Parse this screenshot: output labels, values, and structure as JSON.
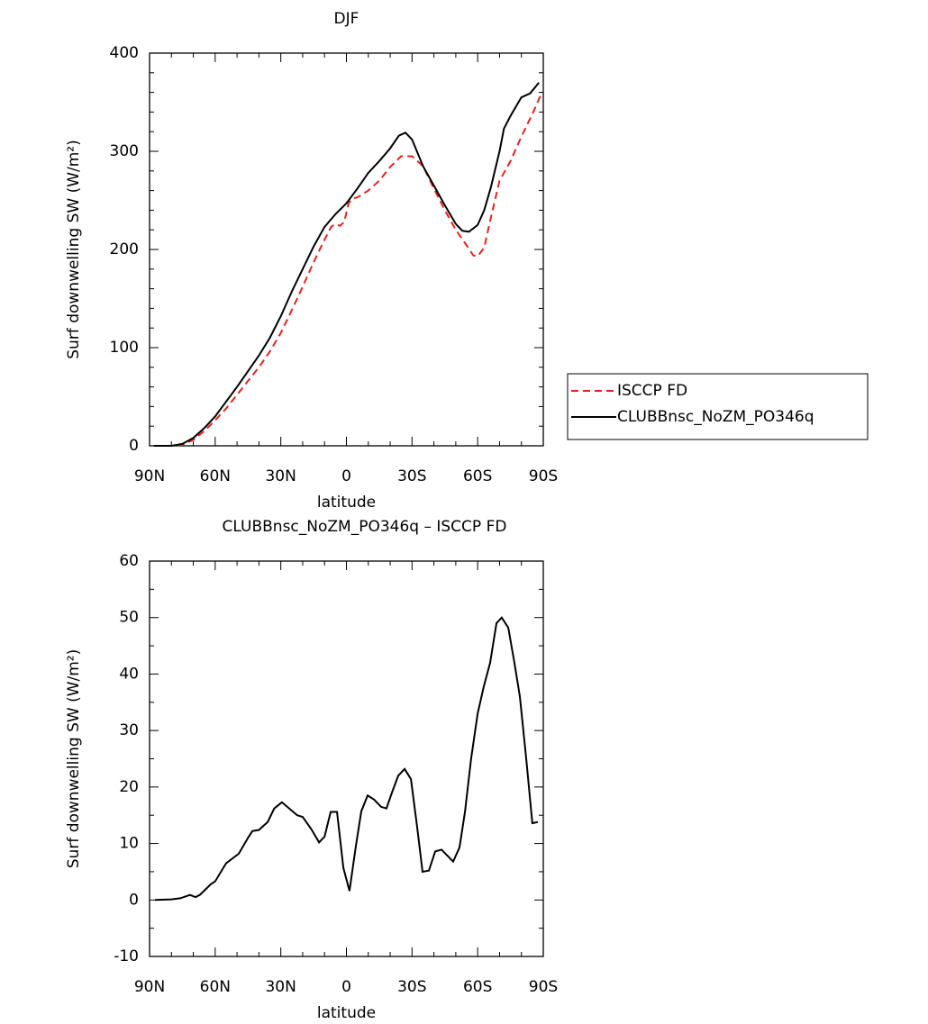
{
  "chart_data": [
    {
      "type": "line",
      "title": "DJF",
      "xlabel": "latitude",
      "ylabel": "Surf downwelling SW (W/m²)",
      "xlim": [
        90,
        -90
      ],
      "xticks": [
        {
          "value": 90,
          "label": "90N"
        },
        {
          "value": 60,
          "label": "60N"
        },
        {
          "value": 30,
          "label": "30N"
        },
        0,
        {
          "value": -30,
          "label": "30S"
        },
        {
          "value": -60,
          "label": "60S"
        },
        {
          "value": -90,
          "label": "90S"
        }
      ],
      "ylim": [
        0,
        400
      ],
      "yticks": [
        0,
        100,
        200,
        300,
        400
      ],
      "legend": "right",
      "series": [
        {
          "name": "ISCCP FD",
          "color": "#e8211d",
          "dash": true,
          "x": [
            88,
            80,
            75,
            70,
            65,
            60,
            55,
            50,
            45,
            40,
            35,
            30,
            25,
            20,
            15,
            10,
            7,
            5,
            3,
            1,
            -1,
            -3,
            -5,
            -10,
            -15,
            -20,
            -25,
            -30,
            -35,
            -40,
            -45,
            -50,
            -55,
            -58,
            -60,
            -63,
            -66,
            -70,
            -75,
            -80,
            -85,
            -89
          ],
          "values": [
            0,
            0,
            1,
            6,
            15,
            26,
            38,
            52,
            66,
            80,
            96,
            115,
            138,
            162,
            187,
            210,
            223,
            226,
            224,
            228,
            247,
            252,
            253,
            260,
            270,
            284,
            295,
            295,
            285,
            262,
            240,
            220,
            204,
            194,
            193,
            202,
            232,
            270,
            290,
            315,
            338,
            358
          ]
        },
        {
          "name": "CLUBBnsc_NoZM_PO346q",
          "color": "#000000",
          "dash": false,
          "x": [
            88,
            80,
            75,
            70,
            65,
            60,
            55,
            50,
            45,
            40,
            35,
            30,
            25,
            20,
            15,
            10,
            5,
            0,
            -5,
            -10,
            -15,
            -20,
            -24,
            -27,
            -30,
            -35,
            -40,
            -45,
            -50,
            -53,
            -56,
            -60,
            -63,
            -66,
            -70,
            -72,
            -75,
            -80,
            -84,
            -88
          ],
          "values": [
            0,
            0,
            2,
            8,
            18,
            30,
            45,
            60,
            76,
            92,
            110,
            132,
            157,
            180,
            203,
            223,
            236,
            247,
            262,
            278,
            290,
            303,
            316,
            319,
            312,
            285,
            265,
            245,
            226,
            219,
            218,
            225,
            240,
            263,
            300,
            323,
            336,
            355,
            359,
            370
          ]
        }
      ]
    },
    {
      "type": "line",
      "title": "CLUBBnsc_NoZM_PO346q – ISCCP FD",
      "xlabel": "latitude",
      "ylabel": "Surf downwelling SW (W/m²)",
      "xlim": [
        90,
        -90
      ],
      "xticks": [
        {
          "value": 90,
          "label": "90N"
        },
        {
          "value": 60,
          "label": "60N"
        },
        {
          "value": 30,
          "label": "30N"
        },
        0,
        {
          "value": -30,
          "label": "30S"
        },
        {
          "value": -60,
          "label": "60S"
        },
        {
          "value": -90,
          "label": "90S"
        }
      ],
      "ylim": [
        -10,
        60
      ],
      "yticks": [
        -10,
        0,
        10,
        20,
        30,
        40,
        50,
        60
      ],
      "series": [
        {
          "color": "#000000",
          "dash": false,
          "x": [
            87.5,
            80,
            76,
            71.5,
            69,
            67,
            62,
            60,
            55,
            49.2,
            45,
            43,
            40,
            36,
            33,
            29.5,
            22.5,
            20,
            16,
            12.5,
            10,
            7.2,
            4.3,
            1.4,
            -1.4,
            -4.3,
            -6.8,
            -9.7,
            -12.6,
            -15.8,
            -18.3,
            -20.8,
            -23.7,
            -26.6,
            -29.5,
            -32.3,
            -34.8,
            -37.7,
            -40.6,
            -43.5,
            -46,
            -48.8,
            -51.7,
            -54.2,
            -57,
            -60,
            -62.8,
            -65.7,
            -68.6,
            -71,
            -74,
            -76.8,
            -79.3,
            -82.2,
            -85,
            -87.5
          ],
          "values": [
            0,
            0.1,
            0.3,
            0.9,
            0.5,
            0.9,
            2.8,
            3.3,
            6.5,
            8.2,
            11,
            12.2,
            12.4,
            13.8,
            16.2,
            17.3,
            15,
            14.7,
            12.5,
            10.2,
            11.2,
            15.6,
            15.6,
            5.7,
            1.6,
            9.5,
            15.7,
            18.5,
            17.8,
            16.5,
            16.2,
            19,
            22,
            23.2,
            21.4,
            13,
            5,
            5.2,
            8.6,
            8.9,
            7.9,
            6.8,
            9.3,
            15.6,
            25,
            33,
            37.8,
            42,
            49,
            50,
            48.2,
            42,
            36,
            25,
            13.6,
            13.8
          ]
        }
      ]
    }
  ]
}
